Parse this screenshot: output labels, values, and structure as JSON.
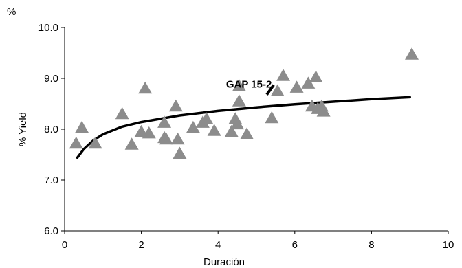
{
  "chart_data": {
    "type": "scatter",
    "title": "",
    "unit_label": "%",
    "xlabel": "Duración",
    "ylabel": "% Yield",
    "xlim": [
      0,
      10
    ],
    "ylim": [
      6.0,
      10.0
    ],
    "x_ticks": [
      0,
      2,
      4,
      6,
      8,
      10
    ],
    "x_tick_labels": [
      "0",
      "2",
      "4",
      "6",
      "8",
      "10"
    ],
    "y_ticks": [
      6.0,
      7.0,
      8.0,
      9.0,
      10.0
    ],
    "y_tick_labels": [
      "6.0",
      "7.0",
      "8.0",
      "9.0",
      "10.0"
    ],
    "grid": false,
    "legend": "none",
    "marker": "triangle",
    "marker_color": "#8c8c8c",
    "line_color": "#000000",
    "points": [
      {
        "x": 0.3,
        "y": 7.72
      },
      {
        "x": 0.45,
        "y": 8.03
      },
      {
        "x": 0.8,
        "y": 7.72
      },
      {
        "x": 1.5,
        "y": 8.3
      },
      {
        "x": 1.75,
        "y": 7.7
      },
      {
        "x": 2.0,
        "y": 7.95
      },
      {
        "x": 2.1,
        "y": 8.8
      },
      {
        "x": 2.2,
        "y": 7.92
      },
      {
        "x": 2.6,
        "y": 8.13
      },
      {
        "x": 2.6,
        "y": 7.83
      },
      {
        "x": 2.65,
        "y": 7.8
      },
      {
        "x": 2.9,
        "y": 8.45
      },
      {
        "x": 2.95,
        "y": 7.8
      },
      {
        "x": 3.0,
        "y": 7.52
      },
      {
        "x": 3.35,
        "y": 8.03
      },
      {
        "x": 3.6,
        "y": 8.13
      },
      {
        "x": 3.7,
        "y": 8.2
      },
      {
        "x": 3.9,
        "y": 7.97
      },
      {
        "x": 4.35,
        "y": 7.95
      },
      {
        "x": 4.45,
        "y": 8.2
      },
      {
        "x": 4.5,
        "y": 8.1
      },
      {
        "x": 4.55,
        "y": 8.55
      },
      {
        "x": 4.55,
        "y": 8.85
      },
      {
        "x": 4.75,
        "y": 7.9
      },
      {
        "x": 5.4,
        "y": 8.22
      },
      {
        "x": 5.55,
        "y": 8.75
      },
      {
        "x": 5.7,
        "y": 9.05
      },
      {
        "x": 6.05,
        "y": 8.82
      },
      {
        "x": 6.35,
        "y": 8.9
      },
      {
        "x": 6.45,
        "y": 8.45
      },
      {
        "x": 6.55,
        "y": 9.02
      },
      {
        "x": 6.6,
        "y": 8.4
      },
      {
        "x": 6.7,
        "y": 8.45
      },
      {
        "x": 6.75,
        "y": 8.35
      },
      {
        "x": 9.05,
        "y": 9.47
      }
    ],
    "trendline": {
      "type": "logarithmic",
      "x": [
        0.33,
        0.5,
        0.75,
        1.0,
        1.5,
        2.0,
        3.0,
        4.0,
        5.0,
        6.0,
        7.0,
        8.0,
        9.0
      ],
      "y": [
        7.44,
        7.61,
        7.78,
        7.9,
        8.05,
        8.14,
        8.27,
        8.36,
        8.43,
        8.49,
        8.54,
        8.59,
        8.63
      ]
    },
    "annotation": {
      "text": "GAP 15-2",
      "x": 5.4,
      "y": 8.82,
      "segment": [
        {
          "x": 5.27,
          "y": 8.68
        },
        {
          "x": 5.45,
          "y": 8.87
        }
      ]
    }
  }
}
